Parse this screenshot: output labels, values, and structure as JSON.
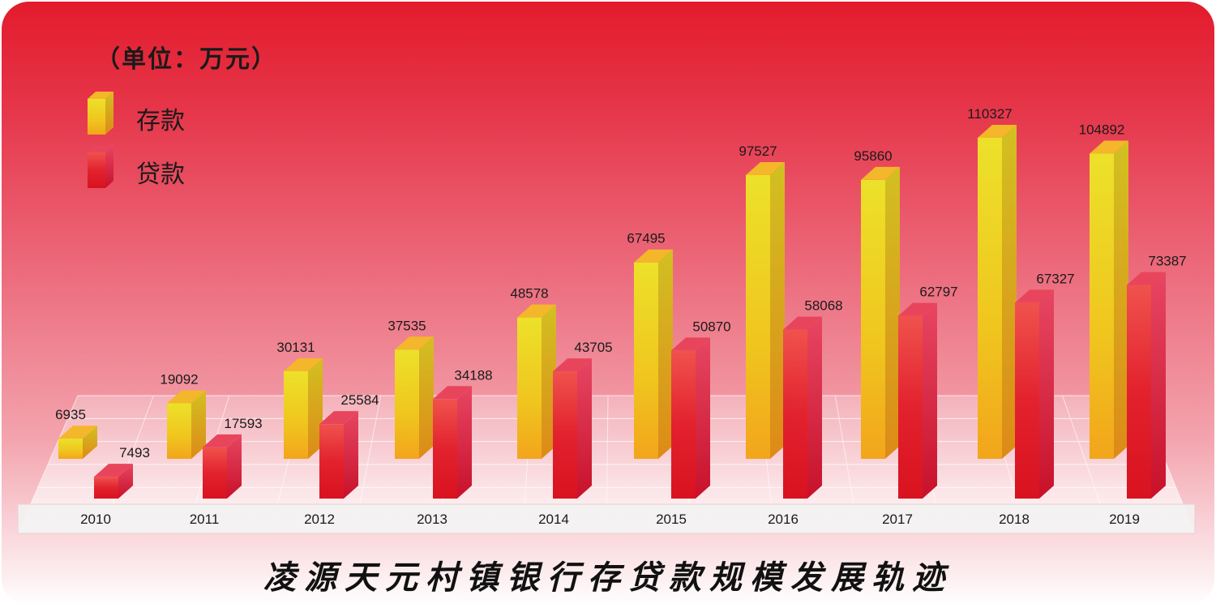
{
  "unit_label": "（单位：万元）",
  "footer_title": "凌源天元村镇银行存贷款规模发展轨迹",
  "colors": {
    "deposit": "#f2d21e",
    "loan": "#e01a2a",
    "background_top": "#e31b2c",
    "background_bottom": "#ffffff"
  },
  "chart_data": {
    "type": "bar",
    "title": "凌源天元村镇银行存贷款规模发展轨迹",
    "unit": "（单位：万元）",
    "categories": [
      "2010",
      "2011",
      "2012",
      "2013",
      "2014",
      "2015",
      "2016",
      "2017",
      "2018",
      "2019"
    ],
    "series": [
      {
        "name": "存款",
        "color": "#f2d21e",
        "values": [
          6935,
          19092,
          30131,
          37535,
          48578,
          67495,
          97527,
          95860,
          110327,
          104892
        ]
      },
      {
        "name": "贷款",
        "color": "#e01a2a",
        "values": [
          7493,
          17593,
          25584,
          34188,
          43705,
          50870,
          58068,
          62797,
          67327,
          73387
        ]
      }
    ],
    "legend_position": "top-left",
    "style": "3d-columns",
    "grid": true
  }
}
